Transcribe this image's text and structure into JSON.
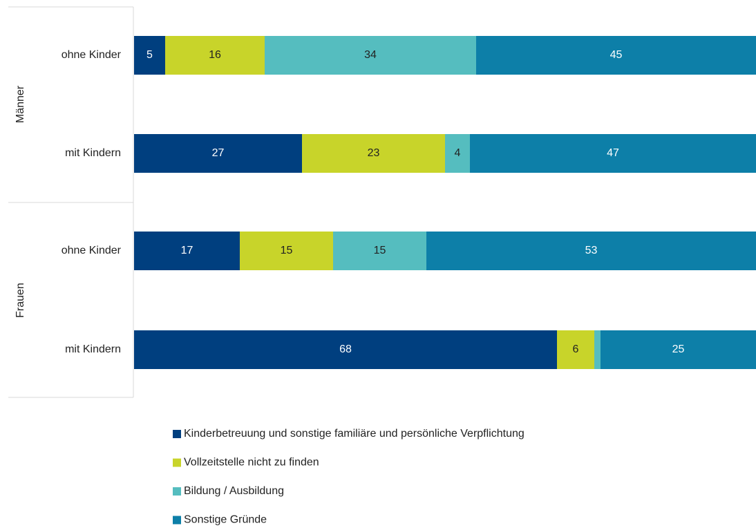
{
  "chart_data": {
    "type": "stacked_bar_horizontal",
    "groups": [
      "Männer",
      "Frauen"
    ],
    "categories": [
      "ohne Kinder",
      "mit Kindern",
      "ohne Kinder",
      "mit Kindern"
    ],
    "xlim": [
      0,
      100
    ],
    "series": [
      {
        "name": "Kinderbetreuung und sonstige familiäre und persönliche Verpflichtung",
        "color": "#003f7f",
        "values": [
          5,
          27,
          17,
          68
        ]
      },
      {
        "name": "Vollzeitstelle nicht zu finden",
        "color": "#c8d42a",
        "values": [
          16,
          23,
          15,
          6
        ]
      },
      {
        "name": "Bildung / Ausbildung",
        "color": "#55bdbf",
        "values": [
          34,
          4,
          15,
          1
        ]
      },
      {
        "name": "Sonstige Gründe",
        "color": "#0d7fa8",
        "values": [
          45,
          47,
          53,
          25
        ]
      }
    ]
  }
}
